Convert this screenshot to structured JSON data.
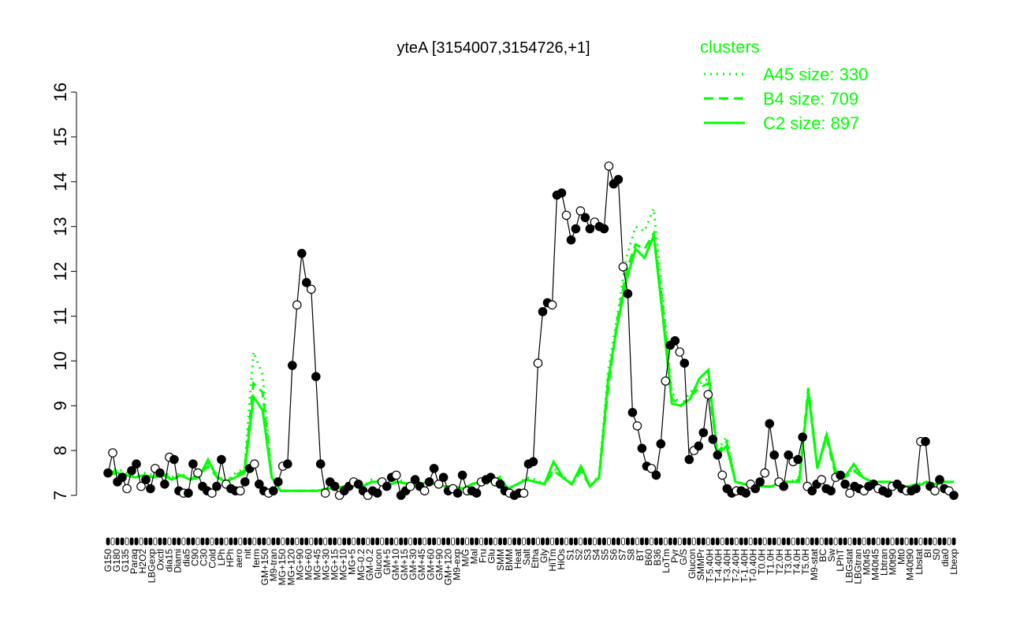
{
  "chart_data": {
    "type": "line",
    "title": "yteA [3154007,3154726,+1]",
    "xlabel": "",
    "ylabel": "",
    "ylim": [
      7,
      16
    ],
    "y_ticks": [
      7,
      8,
      9,
      10,
      11,
      12,
      13,
      14,
      15,
      16
    ],
    "legend": {
      "title": "clusters",
      "placement": "top-right",
      "color": "#00ff00",
      "entries": [
        {
          "label": "A45 size: 330",
          "style": "dotted"
        },
        {
          "label": "B4 size: 709",
          "style": "dashed"
        },
        {
          "label": "C2 size: 897",
          "style": "solid"
        }
      ]
    },
    "x_tick_labels": [
      "G150",
      "G180",
      "G135",
      "Paraq",
      "H2O2",
      "LBGexp",
      "Oxctl",
      "dia15",
      "Diami",
      "dia5",
      "C90",
      "C30",
      "Cold",
      "LPh",
      "HPh",
      "aero",
      "nit",
      "ferm",
      "GM+150",
      "M9-tran",
      "MG+150",
      "MG+120",
      "MG+90",
      "MG+60",
      "MG+45",
      "MG+30",
      "MG+15",
      "MG+10",
      "MG+5",
      "MG-0.2",
      "GM-0.2",
      "Glucon",
      "GM+5",
      "GM+10",
      "GM+15",
      "GM+30",
      "GM+45",
      "GM+60",
      "GM+90",
      "GM+120",
      "M9-exp",
      "M/G",
      "Mal",
      "Fru",
      "Glu",
      "SMM",
      "BMM",
      "Heat",
      "Salt",
      "Etha",
      "Gly",
      "HiTm",
      "HiOs",
      "S1",
      "S2",
      "S3",
      "S4",
      "S5",
      "S6",
      "S7",
      "S8",
      "BT",
      "B60",
      "B36",
      "LoTm",
      "Pyr",
      "G/S",
      "Glucon",
      "SMMPr",
      "T-5.40H",
      "T-4.40H",
      "T-3.40H",
      "T-2.40H",
      "T-1.40H",
      "T-0.40H",
      "T0.0H",
      "T1.0H",
      "T2.0H",
      "T3.0H",
      "T4.0H",
      "T5.0H",
      "M9-stat",
      "BC",
      "Sw",
      "LPhT",
      "LBGstat",
      "LBGtran",
      "M0t45",
      "M40t45",
      "Lbtran",
      "M0t90",
      "Mt0",
      "M40t90",
      "Lbstat",
      "BI",
      "S0",
      "dia0",
      "Lbexp"
    ],
    "series": [
      {
        "name": "",
        "values": [
          7.5,
          7.95,
          7.3,
          7.4,
          7.15,
          7.55,
          7.7,
          7.2,
          7.35,
          7.15,
          7.6,
          7.5,
          7.25,
          7.85,
          7.8,
          7.1,
          7.05,
          7.05,
          7.7,
          7.5,
          7.2,
          7.1,
          7.05,
          7.2,
          7.8,
          7.25,
          7.15,
          7.1,
          7.1,
          7.3,
          7.6,
          7.7,
          7.25,
          7.1,
          7.05,
          7.1,
          7.3,
          7.65,
          7.7,
          9.9,
          11.25,
          12.4,
          11.75,
          11.6,
          9.65,
          7.7,
          7.05,
          7.3,
          7.2,
          7.0,
          7.1,
          7.2,
          7.3,
          7.25,
          7.1,
          7.0,
          7.1,
          7.05,
          7.3,
          7.2,
          7.4,
          7.45,
          7.0,
          7.1,
          7.2,
          7.35,
          7.2,
          7.1,
          7.3,
          7.6,
          7.25,
          7.4,
          7.1,
          7.15,
          7.05,
          7.45,
          7.1,
          7.1,
          7.05,
          7.3,
          7.35,
          7.4,
          7.3,
          7.25,
          7.1,
          7.05,
          7.0,
          7.05,
          7.05,
          7.7,
          7.75,
          9.95,
          11.1,
          11.3,
          11.25,
          13.7,
          13.75,
          13.25,
          12.7,
          12.95,
          13.35,
          13.2,
          12.95,
          13.1,
          13.0,
          12.95,
          14.35,
          13.95,
          14.05,
          12.1,
          11.5,
          8.85,
          8.55,
          8.05,
          7.65,
          7.6,
          7.45,
          8.15,
          9.55,
          10.35,
          10.45,
          10.2,
          9.95,
          7.8,
          8.0,
          8.1,
          8.4,
          9.25,
          8.25,
          7.9,
          7.45,
          7.15,
          7.05,
          7.1,
          7.1,
          7.05,
          7.25,
          7.15,
          7.3,
          7.5,
          8.6,
          7.9,
          7.3,
          7.2,
          7.9,
          7.75,
          7.8,
          8.3,
          7.2,
          7.1,
          7.25,
          7.35,
          7.15,
          7.1,
          7.4,
          7.45,
          7.25,
          7.05,
          7.2,
          7.15,
          7.1,
          7.2,
          7.25,
          7.15,
          7.1,
          7.05,
          7.2,
          7.25,
          7.15,
          7.1,
          7.1,
          7.15,
          8.2,
          8.2,
          7.2,
          7.1,
          7.35,
          7.15,
          7.1,
          7.0
        ]
      },
      {
        "name": "A45 size: 330",
        "style": "dotted",
        "values": [
          7.55,
          7.6,
          7.5,
          7.45,
          7.5,
          7.45,
          7.55,
          7.4,
          7.5,
          7.35,
          7.5,
          7.7,
          7.45,
          7.3,
          7.5,
          7.6,
          10.2,
          9.7,
          7.4,
          7.1,
          7.1,
          7.1,
          7.1,
          7.1,
          7.15,
          7.15,
          7.2,
          7.25,
          7.2,
          7.35,
          7.3,
          7.25,
          7.35,
          7.25,
          7.2,
          7.3,
          7.25,
          7.2,
          7.2,
          7.15,
          7.25,
          7.35,
          7.3,
          7.45,
          7.15,
          7.25,
          7.4,
          7.35,
          7.25,
          7.6,
          7.45,
          7.25,
          7.6,
          7.2,
          7.45,
          9.8,
          11.0,
          12.3,
          13.0,
          12.9,
          13.4,
          11.4,
          9.3,
          9.0,
          9.3,
          9.5,
          9.6,
          8.0,
          8.3,
          7.3,
          7.25,
          7.2,
          7.2,
          7.2,
          7.3,
          7.3,
          7.4,
          9.3,
          7.6,
          8.4,
          7.5,
          7.45,
          7.6,
          7.4,
          7.3,
          7.3,
          7.3,
          7.2,
          7.2,
          7.25,
          7.3,
          7.25,
          7.3,
          7.3
        ]
      },
      {
        "name": "B4 size: 709",
        "style": "dashed",
        "values": [
          7.5,
          7.55,
          7.45,
          7.4,
          7.45,
          7.4,
          7.5,
          7.35,
          7.45,
          7.35,
          7.45,
          7.65,
          7.4,
          7.3,
          7.45,
          7.55,
          9.5,
          9.3,
          7.4,
          7.1,
          7.1,
          7.1,
          7.1,
          7.1,
          7.15,
          7.15,
          7.2,
          7.25,
          7.2,
          7.3,
          7.3,
          7.25,
          7.3,
          7.25,
          7.2,
          7.3,
          7.25,
          7.2,
          7.2,
          7.15,
          7.25,
          7.3,
          7.3,
          7.4,
          7.15,
          7.25,
          7.35,
          7.3,
          7.25,
          7.55,
          7.4,
          7.25,
          7.55,
          7.2,
          7.4,
          9.4,
          10.9,
          12.0,
          12.6,
          12.5,
          12.85,
          11.2,
          9.15,
          9.0,
          9.2,
          9.4,
          9.5,
          7.95,
          8.2,
          7.3,
          7.25,
          7.2,
          7.2,
          7.2,
          7.3,
          7.3,
          7.35,
          9.4,
          7.6,
          8.3,
          7.45,
          7.4,
          7.55,
          7.4,
          7.3,
          7.3,
          7.3,
          7.2,
          7.2,
          7.25,
          7.3,
          7.25,
          7.3,
          7.3
        ]
      },
      {
        "name": "C2 size: 897",
        "style": "solid",
        "values": [
          7.45,
          7.5,
          7.45,
          7.4,
          7.45,
          7.4,
          7.45,
          7.35,
          7.45,
          7.35,
          7.4,
          7.8,
          7.4,
          7.3,
          7.4,
          7.5,
          9.2,
          8.9,
          7.4,
          7.1,
          7.1,
          7.1,
          7.1,
          7.1,
          7.15,
          7.15,
          7.2,
          7.25,
          7.2,
          7.3,
          7.3,
          7.25,
          7.3,
          7.25,
          7.2,
          7.3,
          7.25,
          7.2,
          7.2,
          7.15,
          7.25,
          7.3,
          7.3,
          7.4,
          7.15,
          7.25,
          7.35,
          7.3,
          7.25,
          7.75,
          7.4,
          7.25,
          7.65,
          7.2,
          7.4,
          9.6,
          10.8,
          11.8,
          12.5,
          12.3,
          12.8,
          11.0,
          9.05,
          9.0,
          9.15,
          9.6,
          9.8,
          7.9,
          8.1,
          7.3,
          7.25,
          7.2,
          7.2,
          7.2,
          7.3,
          7.3,
          7.3,
          9.3,
          7.6,
          8.35,
          7.55,
          7.4,
          7.7,
          7.4,
          7.3,
          7.3,
          7.3,
          7.2,
          7.2,
          7.2,
          7.3,
          7.25,
          7.3,
          7.3
        ]
      }
    ]
  },
  "colors": {
    "cluster_line": "#00ff00",
    "data_line": "#000000",
    "point_filled": "#000000",
    "point_open": "#ffffff"
  }
}
